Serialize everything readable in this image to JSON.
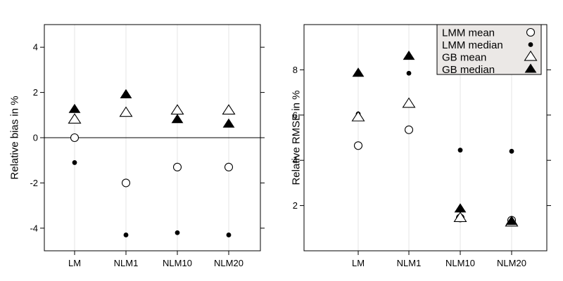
{
  "chart_data": [
    {
      "type": "scatter",
      "categories": [
        "LM",
        "NLM1",
        "NLM10",
        "NLM20"
      ],
      "ylabel": "Relative bias in %",
      "ylim": [
        -5,
        5
      ],
      "yticks": [
        -4,
        -2,
        0,
        2,
        4
      ],
      "reference_line_y": 0,
      "grid": "vertical",
      "series": [
        {
          "name": "LMM mean",
          "marker": "open-circle",
          "values": [
            0.0,
            -2.0,
            -1.3,
            -1.3
          ]
        },
        {
          "name": "LMM median",
          "marker": "filled-dot",
          "values": [
            -1.1,
            -4.3,
            -4.2,
            -4.3
          ]
        },
        {
          "name": "GB mean",
          "marker": "open-triangle",
          "values": [
            0.8,
            1.1,
            1.2,
            1.2
          ]
        },
        {
          "name": "GB median",
          "marker": "filled-triangle",
          "values": [
            1.25,
            1.9,
            0.8,
            0.6
          ]
        }
      ]
    },
    {
      "type": "scatter",
      "categories": [
        "LM",
        "NLM1",
        "NLM10",
        "NLM20"
      ],
      "ylabel": "Relative RMSE in %",
      "ylim": [
        0,
        10
      ],
      "yticks": [
        2,
        4,
        6,
        8
      ],
      "grid": "vertical",
      "legend": {
        "placement": "top-right",
        "entries": [
          "LMM mean",
          "LMM median",
          "GB mean",
          "GB median"
        ]
      },
      "series": [
        {
          "name": "LMM mean",
          "marker": "open-circle",
          "values": [
            4.65,
            5.35,
            1.45,
            1.35
          ]
        },
        {
          "name": "LMM median",
          "marker": "filled-dot",
          "values": [
            6.05,
            7.85,
            4.45,
            4.4
          ]
        },
        {
          "name": "GB mean",
          "marker": "open-triangle",
          "values": [
            5.9,
            6.5,
            1.45,
            1.25
          ]
        },
        {
          "name": "GB median",
          "marker": "filled-triangle",
          "values": [
            7.85,
            8.6,
            1.85,
            1.3
          ]
        }
      ]
    }
  ]
}
